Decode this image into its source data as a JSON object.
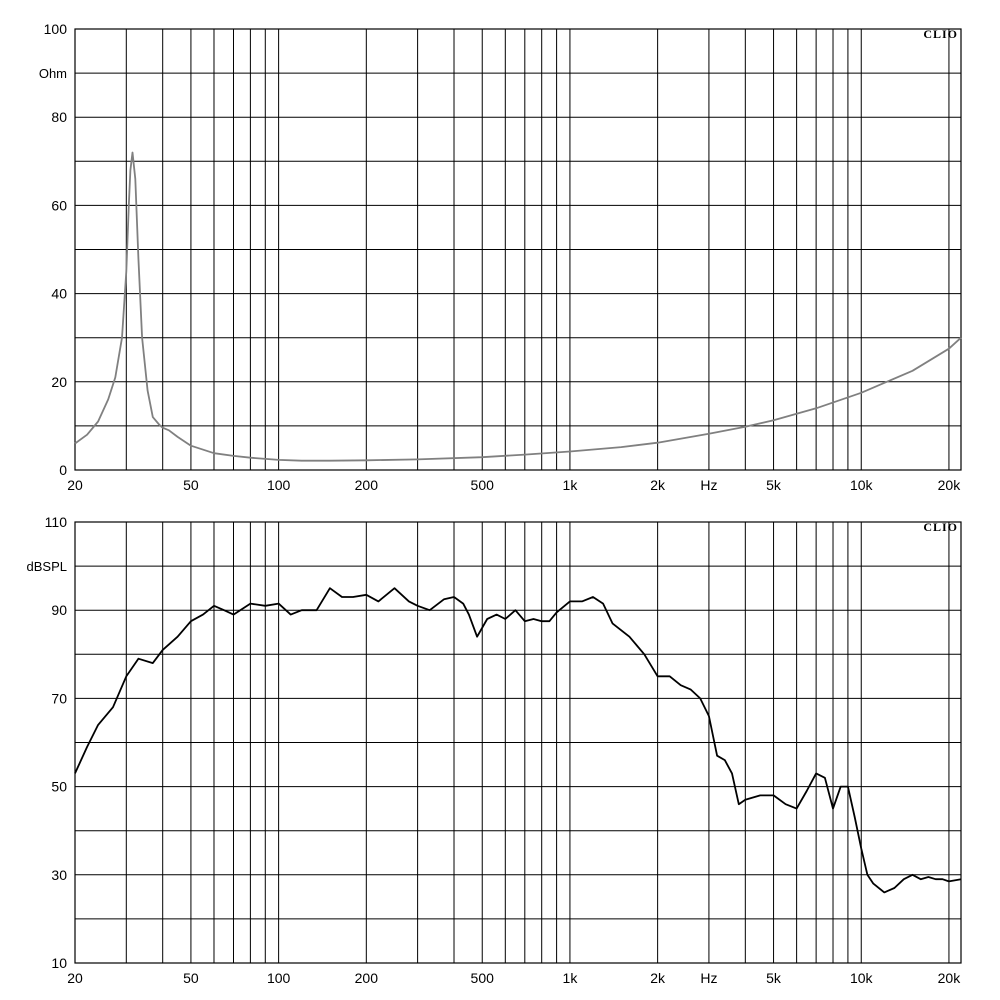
{
  "chart_data": [
    {
      "type": "line",
      "title": "",
      "brand": "CLIO",
      "xlabel": "Hz",
      "ylabel": "Ohm",
      "xscale": "log",
      "xlim": [
        20,
        22000
      ],
      "ylim": [
        0,
        100
      ],
      "grid": true,
      "x_ticks": [
        20,
        50,
        100,
        200,
        500,
        1000,
        2000,
        5000,
        10000,
        20000
      ],
      "x_tick_labels": [
        "20",
        "50",
        "100",
        "200",
        "500",
        "1k",
        "2k",
        "5k",
        "10k",
        "20k"
      ],
      "y_ticks": [
        0,
        20,
        40,
        60,
        80,
        100
      ],
      "y_tick_labels": [
        "0",
        "20",
        "40",
        "60",
        "80",
        "100"
      ],
      "series": [
        {
          "color": "#808080",
          "x": [
            20,
            22,
            24,
            26,
            27.5,
            29,
            30,
            30.6,
            31,
            31.5,
            32.2,
            33,
            34,
            35.5,
            37,
            39,
            40,
            42,
            45,
            50,
            60,
            70,
            80,
            100,
            120,
            150,
            200,
            300,
            500,
            700,
            1000,
            1500,
            2000,
            3000,
            4000,
            5000,
            7000,
            10000,
            15000,
            20000,
            22000
          ],
          "y": [
            6,
            8,
            11,
            16,
            21,
            30,
            45,
            60,
            68,
            72,
            66,
            48,
            30,
            18,
            12,
            10.2,
            9.6,
            9,
            7.5,
            5.5,
            3.8,
            3.2,
            2.8,
            2.3,
            2.1,
            2.1,
            2.2,
            2.4,
            2.9,
            3.5,
            4.2,
            5.2,
            6.2,
            8.2,
            9.8,
            11.3,
            14,
            17.5,
            22.5,
            27.5,
            30
          ]
        }
      ]
    },
    {
      "type": "line",
      "title": "",
      "brand": "CLIO",
      "xlabel": "Hz",
      "ylabel": "dBSPL",
      "xscale": "log",
      "xlim": [
        20,
        22000
      ],
      "ylim": [
        10,
        110
      ],
      "grid": true,
      "x_ticks": [
        20,
        50,
        100,
        200,
        500,
        1000,
        2000,
        5000,
        10000,
        20000
      ],
      "x_tick_labels": [
        "20",
        "50",
        "100",
        "200",
        "500",
        "1k",
        "2k",
        "5k",
        "10k",
        "20k"
      ],
      "y_ticks": [
        10,
        30,
        50,
        70,
        90,
        110
      ],
      "y_tick_labels": [
        "10",
        "30",
        "50",
        "70",
        "90",
        "110"
      ],
      "series": [
        {
          "color": "#000000",
          "x": [
            20,
            22,
            24,
            27,
            30,
            33,
            37,
            40,
            45,
            50,
            55,
            60,
            65,
            70,
            80,
            90,
            100,
            110,
            120,
            135,
            150,
            165,
            180,
            200,
            220,
            250,
            280,
            300,
            330,
            370,
            400,
            430,
            450,
            480,
            520,
            560,
            600,
            650,
            700,
            750,
            800,
            850,
            900,
            1000,
            1100,
            1200,
            1300,
            1400,
            1600,
            1800,
            2000,
            2200,
            2400,
            2600,
            2800,
            3000,
            3200,
            3400,
            3600,
            3800,
            4000,
            4500,
            5000,
            5500,
            6000,
            6500,
            7000,
            7500,
            8000,
            8500,
            9000,
            9500,
            10000,
            10500,
            11000,
            12000,
            13000,
            14000,
            15000,
            16000,
            17000,
            18000,
            19000,
            20000,
            22000
          ],
          "y": [
            53,
            59,
            64,
            68,
            75,
            79,
            78,
            81,
            84,
            87.5,
            89,
            91,
            90,
            89,
            91.5,
            91,
            91.5,
            89,
            90,
            90,
            95,
            93,
            93,
            93.5,
            92,
            95,
            92,
            91,
            90,
            92.5,
            93,
            91.5,
            89,
            84,
            88,
            89,
            88,
            90,
            87.5,
            88,
            87.5,
            87.5,
            89.5,
            92,
            92,
            93,
            91.5,
            87,
            84,
            80,
            75,
            75,
            73,
            72,
            70,
            66,
            57,
            56,
            53,
            46,
            47,
            48,
            48,
            46,
            45,
            49,
            53,
            52,
            45,
            50,
            50,
            43,
            36,
            30,
            28,
            26,
            27,
            29,
            30,
            29,
            29.5,
            29,
            29,
            28.5,
            29
          ]
        }
      ]
    }
  ]
}
